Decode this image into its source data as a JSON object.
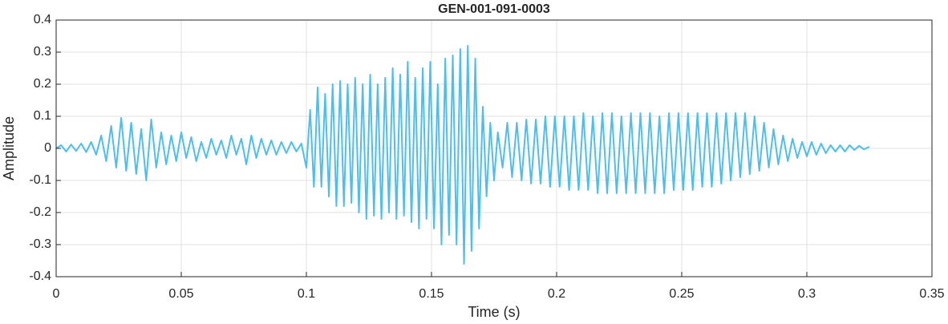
{
  "chart_data": {
    "type": "line",
    "title": "GEN-001-091-0003",
    "xlabel": "Time (s)",
    "ylabel": "Amplitude",
    "xlim": [
      0,
      0.35
    ],
    "ylim": [
      -0.4,
      0.4
    ],
    "xticks": [
      0,
      0.05,
      0.1,
      0.15,
      0.2,
      0.25,
      0.3,
      0.35
    ],
    "yticks": [
      -0.4,
      -0.3,
      -0.2,
      -0.1,
      0,
      0.1,
      0.2,
      0.3,
      0.4
    ],
    "grid": true,
    "x": [
      0,
      0.002,
      0.004,
      0.006,
      0.008,
      0.01,
      0.012,
      0.014,
      0.016,
      0.018,
      0.02,
      0.022,
      0.024,
      0.026,
      0.028,
      0.03,
      0.032,
      0.034,
      0.036,
      0.038,
      0.04,
      0.042,
      0.044,
      0.046,
      0.048,
      0.05,
      0.052,
      0.054,
      0.056,
      0.058,
      0.06,
      0.062,
      0.064,
      0.066,
      0.068,
      0.07,
      0.072,
      0.074,
      0.076,
      0.078,
      0.08,
      0.082,
      0.084,
      0.086,
      0.088,
      0.09,
      0.092,
      0.094,
      0.096,
      0.098,
      0.1,
      0.1015,
      0.103,
      0.1045,
      0.106,
      0.1075,
      0.109,
      0.1105,
      0.112,
      0.1135,
      0.115,
      0.1165,
      0.118,
      0.1195,
      0.121,
      0.1225,
      0.124,
      0.1255,
      0.127,
      0.1285,
      0.13,
      0.1315,
      0.133,
      0.1345,
      0.136,
      0.1375,
      0.139,
      0.1405,
      0.142,
      0.1435,
      0.145,
      0.1465,
      0.148,
      0.1495,
      0.151,
      0.1525,
      0.154,
      0.1555,
      0.157,
      0.1585,
      0.16,
      0.1615,
      0.163,
      0.1645,
      0.166,
      0.1675,
      0.169,
      0.1705,
      0.172,
      0.1735,
      0.175,
      0.1765,
      0.1784,
      0.1803,
      0.1822,
      0.1841,
      0.186,
      0.1879,
      0.1898,
      0.1917,
      0.1936,
      0.1955,
      0.1974,
      0.1993,
      0.2012,
      0.2031,
      0.205,
      0.2069,
      0.2088,
      0.2107,
      0.2126,
      0.2145,
      0.2164,
      0.2183,
      0.2202,
      0.2221,
      0.224,
      0.2259,
      0.2278,
      0.2297,
      0.2316,
      0.2335,
      0.2354,
      0.2373,
      0.2392,
      0.2411,
      0.243,
      0.2449,
      0.2468,
      0.2487,
      0.2506,
      0.2525,
      0.2544,
      0.2563,
      0.2582,
      0.2601,
      0.262,
      0.2639,
      0.2658,
      0.2677,
      0.2696,
      0.2715,
      0.2734,
      0.2753,
      0.2772,
      0.2791,
      0.281,
      0.2829,
      0.2848,
      0.2867,
      0.2886,
      0.2905,
      0.2924,
      0.2943,
      0.2962,
      0.2981,
      0.3,
      0.3019,
      0.3038,
      0.3057,
      0.3076,
      0.3095,
      0.3114,
      0.3133,
      0.3152,
      0.3171,
      0.319,
      0.3209,
      0.3228,
      0.325
    ],
    "series": [
      {
        "color": "#4dbeee",
        "values": [
          0,
          0.01,
          -0.01,
          0.012,
          -0.008,
          0.015,
          -0.012,
          0.02,
          -0.02,
          0.04,
          -0.04,
          0.07,
          -0.06,
          0.095,
          -0.07,
          0.08,
          -0.08,
          0.06,
          -0.1,
          0.09,
          -0.06,
          0.05,
          -0.05,
          0.04,
          -0.04,
          0.05,
          -0.03,
          0.035,
          -0.04,
          0.02,
          -0.03,
          0.03,
          -0.02,
          0.025,
          -0.03,
          0.04,
          -0.02,
          0.03,
          -0.05,
          0.04,
          -0.03,
          0.03,
          -0.02,
          0.025,
          -0.02,
          0.02,
          -0.015,
          0.02,
          -0.01,
          0.015,
          -0.06,
          0.12,
          -0.12,
          0.19,
          -0.12,
          0.17,
          -0.15,
          0.2,
          -0.18,
          0.21,
          -0.18,
          0.2,
          -0.17,
          0.22,
          -0.2,
          0.2,
          -0.22,
          0.23,
          -0.21,
          0.2,
          -0.22,
          0.22,
          -0.2,
          0.25,
          -0.22,
          0.23,
          -0.21,
          0.27,
          -0.23,
          0.22,
          -0.25,
          0.25,
          -0.22,
          0.27,
          -0.25,
          0.2,
          -0.3,
          0.28,
          -0.27,
          0.29,
          -0.3,
          0.31,
          -0.36,
          0.32,
          -0.32,
          0.28,
          -0.25,
          0.13,
          -0.15,
          0.08,
          -0.1,
          0.05,
          -0.06,
          0.08,
          -0.09,
          0.08,
          -0.1,
          0.09,
          -0.11,
          0.09,
          -0.11,
          0.1,
          -0.12,
          0.1,
          -0.12,
          0.1,
          -0.13,
          0.1,
          -0.13,
          0.11,
          -0.13,
          0.1,
          -0.14,
          0.11,
          -0.14,
          0.11,
          -0.14,
          0.1,
          -0.14,
          0.11,
          -0.14,
          0.11,
          -0.14,
          0.11,
          -0.14,
          0.1,
          -0.14,
          0.11,
          -0.13,
          0.11,
          -0.13,
          0.11,
          -0.13,
          0.11,
          -0.12,
          0.11,
          -0.12,
          0.11,
          -0.11,
          0.11,
          -0.1,
          0.11,
          -0.09,
          0.11,
          -0.08,
          0.1,
          -0.07,
          0.08,
          -0.06,
          0.06,
          -0.05,
          0.04,
          -0.04,
          0.03,
          -0.03,
          0.02,
          -0.025,
          0.02,
          -0.02,
          0.015,
          -0.015,
          0.01,
          -0.01,
          0.01,
          -0.01,
          0.01,
          -0.005,
          0.008,
          -0.003,
          0.005
        ]
      }
    ]
  }
}
